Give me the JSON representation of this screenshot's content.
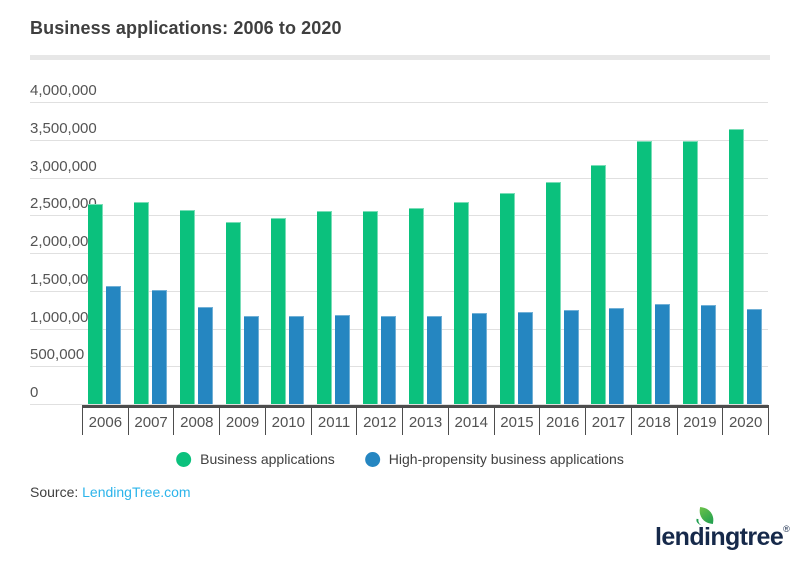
{
  "header": {
    "title": "Business applications: 2006 to 2020"
  },
  "chart_data": {
    "type": "bar",
    "title": "Business applications: 2006 to 2020",
    "categories": [
      "2006",
      "2007",
      "2008",
      "2009",
      "2010",
      "2011",
      "2012",
      "2013",
      "2014",
      "2015",
      "2016",
      "2017",
      "2018",
      "2019",
      "2020"
    ],
    "series": [
      {
        "name": "Business applications",
        "color": "#0bc17d",
        "values": [
          2650000,
          2670000,
          2570000,
          2410000,
          2470000,
          2550000,
          2550000,
          2590000,
          2680000,
          2800000,
          2940000,
          3170000,
          3490000,
          3490000,
          3640000
        ]
      },
      {
        "name": "High-propensity business applications",
        "color": "#2586c1",
        "values": [
          1560000,
          1510000,
          1280000,
          1170000,
          1160000,
          1180000,
          1160000,
          1170000,
          1200000,
          1220000,
          1240000,
          1270000,
          1330000,
          1310000,
          1260000
        ]
      }
    ],
    "xlabel": "",
    "ylabel": "",
    "ylim": [
      0,
      4000000
    ],
    "ytick_step": 500000,
    "ytick_labels_top_to_bottom": [
      "4,000,000",
      "3,500,000",
      "3,000,000",
      "2,500,000",
      "2,000,000",
      "1,500,000",
      "1,000,000",
      "500,000",
      "0"
    ],
    "grid": true,
    "legend_position": "bottom"
  },
  "legend": {
    "items": [
      {
        "label": "Business applications",
        "color": "#0bc17d"
      },
      {
        "label": "High-propensity business applications",
        "color": "#2586c1"
      }
    ]
  },
  "footer": {
    "source_label": "Source:",
    "source_link": "LendingTree.com",
    "link_color": "#2cb4ea"
  },
  "logo": {
    "text": "lendingtree",
    "mark": "®",
    "text_color": "#16294a",
    "leaf_color": "#1e9e4f"
  }
}
